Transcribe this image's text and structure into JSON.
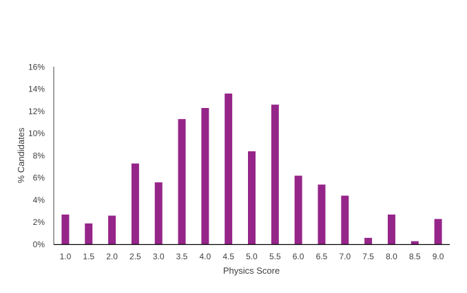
{
  "chart_data": {
    "type": "bar",
    "title": "",
    "xlabel": "Physics Score",
    "ylabel": "% Candidates",
    "categories": [
      "1.0",
      "1.5",
      "2.0",
      "2.5",
      "3.0",
      "3.5",
      "4.0",
      "4.5",
      "5.0",
      "5.5",
      "6.0",
      "6.5",
      "7.0",
      "7.5",
      "8.0",
      "8.5",
      "9.0"
    ],
    "values": [
      2.7,
      1.9,
      2.6,
      7.3,
      5.6,
      11.3,
      12.3,
      13.6,
      8.4,
      12.6,
      6.2,
      5.4,
      4.4,
      0.6,
      2.7,
      0.3,
      2.3
    ],
    "ylim": [
      0,
      16
    ],
    "yticks": [
      "0%",
      "2%",
      "4%",
      "6%",
      "8%",
      "10%",
      "12%",
      "14%",
      "16%"
    ],
    "ytick_values": [
      0,
      2,
      4,
      6,
      8,
      10,
      12,
      14,
      16
    ],
    "grid": false,
    "legend": "none",
    "bar_color": "#952589"
  }
}
